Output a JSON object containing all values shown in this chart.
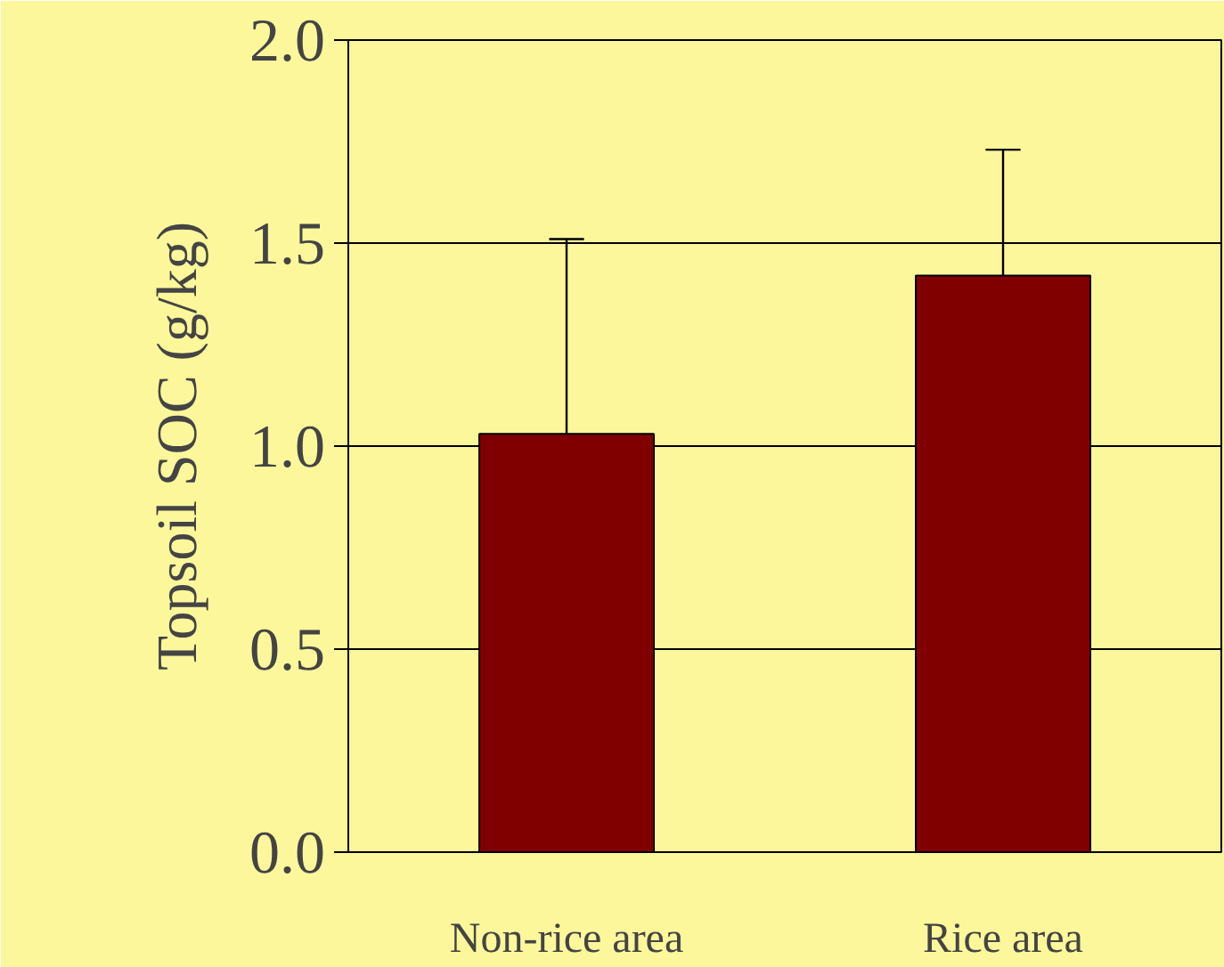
{
  "chart_data": {
    "type": "bar",
    "ylabel": "Topsoil SOC (g/kg)",
    "categories": [
      "Non-rice area",
      "Rice area"
    ],
    "values": [
      1.03,
      1.42
    ],
    "color": "#800000",
    "errors": [
      [
        1.03,
        1.51
      ],
      [
        1.42,
        1.73
      ]
    ],
    "ylim": [
      0,
      2.0
    ],
    "yticks": [
      {
        "value": 0,
        "label": "0.0"
      },
      {
        "value": 0.5,
        "label": "0.5"
      },
      {
        "value": 1.0,
        "label": "1.0"
      },
      {
        "value": 1.5,
        "label": "1.5"
      },
      {
        "value": 2.0,
        "label": "2.0"
      }
    ],
    "grid": "y"
  }
}
